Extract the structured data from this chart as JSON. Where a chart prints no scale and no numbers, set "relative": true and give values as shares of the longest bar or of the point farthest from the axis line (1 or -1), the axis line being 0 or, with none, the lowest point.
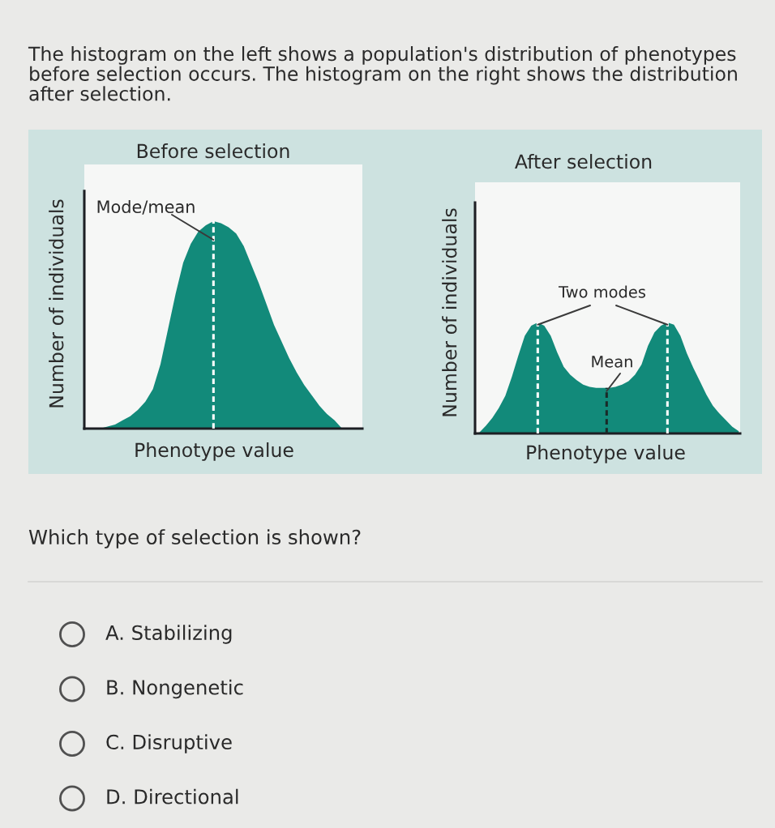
{
  "chart_data": [
    {
      "type": "other",
      "annotations": [
        "The histogram on the left shows a population's distribution of phenotypes before selection occurs. The histogram on the right shows the distribution after selection."
      ]
    },
    {
      "type": "area",
      "title": "Before selection",
      "xlabel": "Phenotype value",
      "ylabel": "Number of individuals",
      "relative": true,
      "categories": [
        null,
        null,
        null,
        null,
        null,
        null,
        null,
        null,
        null,
        null,
        null,
        null,
        null,
        null,
        null,
        null,
        null,
        null,
        null,
        null,
        null,
        null,
        null,
        null,
        null,
        null,
        null,
        null,
        null,
        null,
        null,
        null,
        null,
        null,
        null,
        null,
        null
      ],
      "values": [
        0,
        0,
        0,
        0.01,
        0.02,
        0.04,
        0.06,
        0.09,
        0.13,
        0.19,
        0.31,
        0.48,
        0.65,
        0.8,
        0.89,
        0.95,
        0.98,
        1,
        0.99,
        0.97,
        0.94,
        0.88,
        0.79,
        0.7,
        0.6,
        0.5,
        0.42,
        0.34,
        0.27,
        0.21,
        0.16,
        0.11,
        0.07,
        0.04,
        0,
        0,
        0
      ],
      "color": "#128a7a",
      "annotations": [
        "Mode/mean"
      ]
    },
    {
      "type": "area",
      "title": "After selection",
      "xlabel": "Phenotype value",
      "ylabel": "Number of individuals",
      "relative": true,
      "categories": [
        null,
        null,
        null,
        null,
        null,
        null,
        null,
        null,
        null,
        null,
        null,
        null,
        null,
        null,
        null,
        null,
        null,
        null,
        null,
        null,
        null,
        null,
        null,
        null,
        null,
        null,
        null,
        null,
        null,
        null,
        null,
        null,
        null,
        null,
        null,
        null,
        null,
        null,
        null,
        null,
        null,
        null
      ],
      "values": [
        0,
        0.01,
        0.07,
        0.14,
        0.23,
        0.34,
        0.51,
        0.7,
        0.88,
        0.97,
        1,
        0.97,
        0.88,
        0.73,
        0.6,
        0.53,
        0.48,
        0.44,
        0.42,
        0.41,
        0.41,
        0.41,
        0.42,
        0.44,
        0.47,
        0.53,
        0.62,
        0.79,
        0.91,
        0.97,
        1,
        0.98,
        0.88,
        0.72,
        0.59,
        0.47,
        0.35,
        0.25,
        0.18,
        0.12,
        0.06,
        0.02
      ],
      "color": "#128a7a",
      "annotations": [
        "Two modes",
        "Mean"
      ]
    },
    {
      "type": "other",
      "title": "Which type of selection is shown?",
      "annotations": [
        "A. Stabilizing",
        "B. Nongenetic",
        "C. Disruptive",
        "D. Directional"
      ]
    }
  ]
}
